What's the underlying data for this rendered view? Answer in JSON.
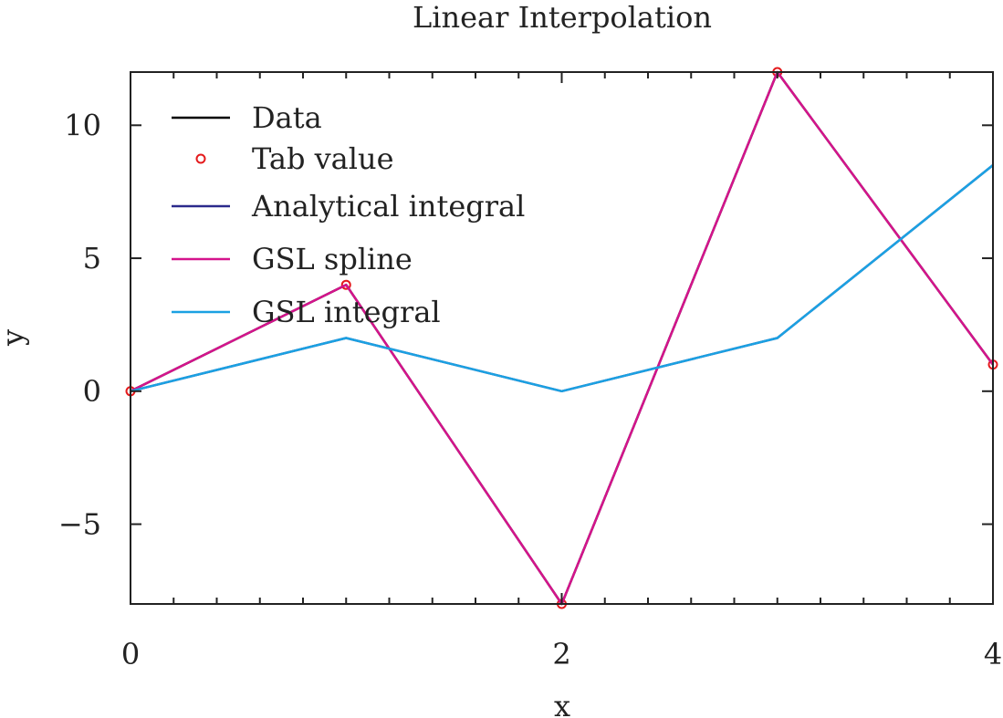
{
  "chart_data": {
    "type": "line",
    "title": "Linear Interpolation",
    "xlabel": "x",
    "ylabel": "y",
    "xlim": [
      0,
      4
    ],
    "ylim": [
      -8,
      12
    ],
    "xticks": [
      0,
      2,
      4
    ],
    "xtick_labels": [
      "0",
      "2",
      "4"
    ],
    "yticks": [
      -5,
      0,
      5,
      10
    ],
    "ytick_labels": [
      "−5",
      "0",
      "5",
      "10"
    ],
    "legend_position": "top-left",
    "grid": false,
    "series": [
      {
        "name": "Data",
        "kind": "line",
        "color": "#000000",
        "x": [
          0,
          1,
          2,
          3,
          4
        ],
        "y": [
          0,
          4,
          -8,
          12,
          1
        ]
      },
      {
        "name": "Tab value",
        "kind": "points",
        "color": "#e41a1c",
        "x": [
          0,
          1,
          2,
          3,
          4
        ],
        "y": [
          0,
          4,
          -8,
          12,
          1
        ]
      },
      {
        "name": "Analytical integral",
        "kind": "line",
        "color": "#2b2a8c",
        "x": [
          0,
          1,
          2,
          3,
          4
        ],
        "y": [
          0,
          2,
          0,
          2,
          8.5
        ]
      },
      {
        "name": "GSL spline",
        "kind": "line",
        "color": "#d4148c",
        "x": [
          0,
          1,
          2,
          3,
          4
        ],
        "y": [
          0,
          4,
          -8,
          12,
          1
        ]
      },
      {
        "name": "GSL integral",
        "kind": "line",
        "color": "#1ba1e2",
        "x": [
          0,
          1,
          2,
          3,
          4
        ],
        "y": [
          0,
          2,
          0,
          2,
          8.5
        ]
      }
    ]
  }
}
